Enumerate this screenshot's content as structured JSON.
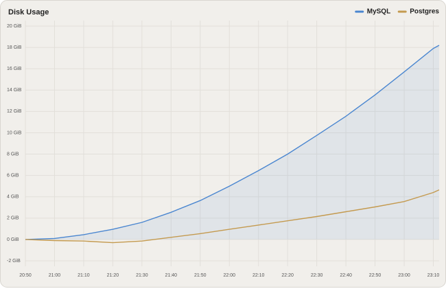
{
  "chart_data": {
    "type": "line",
    "title": "Disk Usage",
    "x": [
      "20:50",
      "21:00",
      "21:10",
      "21:20",
      "21:30",
      "21:40",
      "21:50",
      "22:00",
      "22:10",
      "22:20",
      "22:30",
      "22:40",
      "22:50",
      "23:00",
      "23:10",
      "23:12"
    ],
    "series": [
      {
        "name": "MySQL",
        "color": "#4a86d0",
        "fill": true,
        "values": [
          0,
          0.1,
          0.45,
          0.95,
          1.6,
          2.55,
          3.65,
          5.0,
          6.45,
          8.0,
          9.75,
          11.55,
          13.55,
          15.7,
          17.9,
          18.2
        ]
      },
      {
        "name": "Postgres",
        "color": "#c49a4f",
        "values": [
          0,
          -0.1,
          -0.15,
          -0.3,
          -0.15,
          0.2,
          0.55,
          0.95,
          1.35,
          1.75,
          2.15,
          2.6,
          3.05,
          3.55,
          4.4,
          4.65
        ]
      }
    ],
    "xlim": [
      "20:50",
      "23:12"
    ],
    "xticks": [
      "20:50",
      "21:00",
      "21:10",
      "21:20",
      "21:30",
      "21:40",
      "21:50",
      "22:00",
      "22:10",
      "22:20",
      "22:30",
      "22:40",
      "22:50",
      "23:00",
      "23:10"
    ],
    "ylim": [
      -2,
      20
    ],
    "yticks": [
      {
        "value": -2,
        "label": "-2 GiB"
      },
      {
        "value": 0,
        "label": "0 GiB"
      },
      {
        "value": 2,
        "label": "2 GiB"
      },
      {
        "value": 4,
        "label": "4 GiB"
      },
      {
        "value": 6,
        "label": "6 GiB"
      },
      {
        "value": 8,
        "label": "8 GiB"
      },
      {
        "value": 10,
        "label": "10 GiB"
      },
      {
        "value": 12,
        "label": "12 GiB"
      },
      {
        "value": 14,
        "label": "14 GiB"
      },
      {
        "value": 16,
        "label": "16 GiB"
      },
      {
        "value": 18,
        "label": "18 GiB"
      },
      {
        "value": 20,
        "label": "20 GiB"
      }
    ],
    "grid": true,
    "legend": "top-right"
  }
}
